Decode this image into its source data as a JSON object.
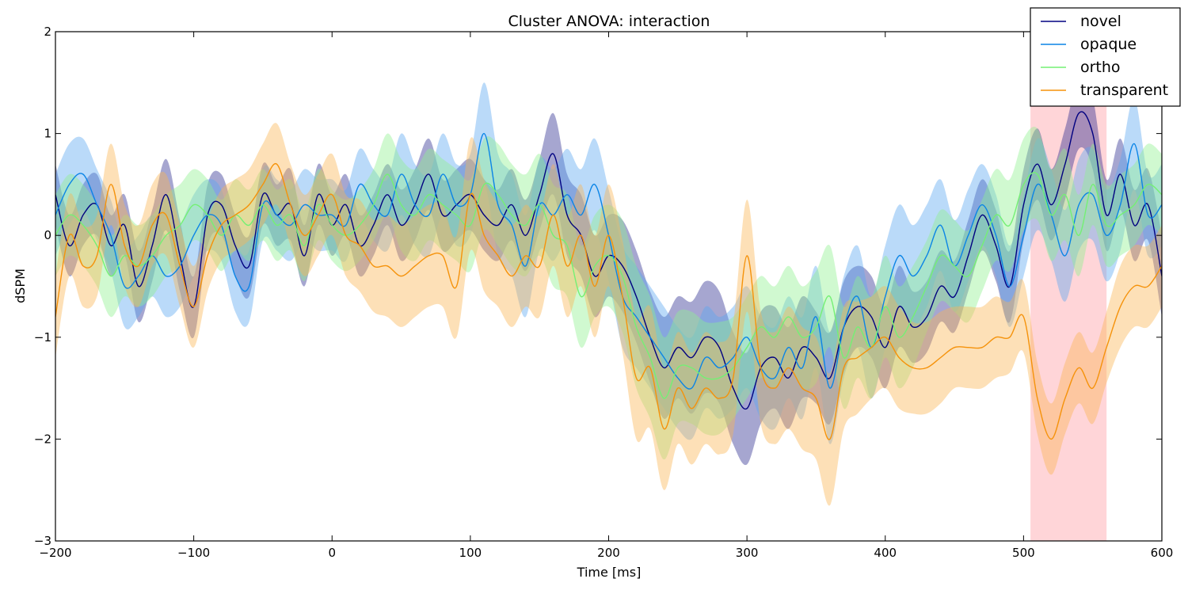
{
  "chart_data": {
    "type": "line",
    "title": "Cluster ANOVA: interaction",
    "xlabel": "Time [ms]",
    "ylabel": "dSPM",
    "xlim": [
      -200,
      600
    ],
    "ylim": [
      -3,
      2
    ],
    "xticks": [
      -200,
      -100,
      0,
      100,
      200,
      300,
      400,
      500,
      600
    ],
    "yticks": [
      -3,
      -2,
      -1,
      0,
      1,
      2
    ],
    "grid": false,
    "legend_position": "top-right",
    "highlight_span": [
      505,
      560
    ],
    "highlight_color": "#ffb3b8",
    "series": [
      {
        "name": "novel",
        "color": "#000080",
        "band_color": "#2a2a8f",
        "x": [
          -200,
          -190,
          -180,
          -170,
          -160,
          -150,
          -140,
          -130,
          -120,
          -110,
          -100,
          -90,
          -80,
          -70,
          -60,
          -50,
          -40,
          -30,
          -20,
          -10,
          0,
          10,
          20,
          30,
          40,
          50,
          60,
          70,
          80,
          90,
          100,
          110,
          120,
          130,
          140,
          150,
          160,
          170,
          180,
          190,
          200,
          210,
          220,
          230,
          240,
          250,
          260,
          270,
          280,
          290,
          300,
          310,
          320,
          330,
          340,
          350,
          360,
          370,
          380,
          390,
          400,
          410,
          420,
          430,
          440,
          450,
          460,
          470,
          480,
          490,
          500,
          510,
          520,
          530,
          540,
          550,
          560,
          570,
          580,
          590,
          600
        ],
        "y": [
          0.4,
          -0.1,
          0.2,
          0.3,
          -0.1,
          0.1,
          -0.5,
          -0.1,
          0.4,
          -0.2,
          -0.7,
          0.2,
          0.3,
          -0.1,
          -0.3,
          0.4,
          0.2,
          0.3,
          -0.2,
          0.4,
          0.1,
          0.3,
          -0.1,
          0.1,
          0.4,
          0.1,
          0.3,
          0.6,
          0.2,
          0.3,
          0.4,
          0.2,
          0.1,
          0.3,
          0.0,
          0.4,
          0.8,
          0.2,
          0.0,
          -0.4,
          -0.2,
          -0.3,
          -0.6,
          -1.0,
          -1.3,
          -1.1,
          -1.2,
          -1.0,
          -1.1,
          -1.5,
          -1.7,
          -1.3,
          -1.2,
          -1.4,
          -1.1,
          -1.2,
          -1.4,
          -0.9,
          -0.7,
          -0.8,
          -1.1,
          -0.7,
          -0.9,
          -0.8,
          -0.5,
          -0.6,
          -0.2,
          0.2,
          -0.1,
          -0.5,
          0.3,
          0.7,
          0.3,
          0.7,
          1.2,
          1.0,
          0.2,
          0.6,
          0.1,
          0.3,
          -0.4
        ],
        "err": [
          0.3,
          0.3,
          0.3,
          0.3,
          0.3,
          0.3,
          0.35,
          0.35,
          0.35,
          0.35,
          0.3,
          0.3,
          0.3,
          0.3,
          0.3,
          0.3,
          0.3,
          0.35,
          0.3,
          0.3,
          0.3,
          0.3,
          0.3,
          0.3,
          0.3,
          0.35,
          0.35,
          0.35,
          0.35,
          0.35,
          0.35,
          0.35,
          0.35,
          0.35,
          0.35,
          0.35,
          0.4,
          0.4,
          0.4,
          0.4,
          0.4,
          0.45,
          0.45,
          0.45,
          0.5,
          0.5,
          0.55,
          0.55,
          0.55,
          0.55,
          0.55,
          0.55,
          0.5,
          0.5,
          0.5,
          0.45,
          0.45,
          0.45,
          0.4,
          0.4,
          0.4,
          0.4,
          0.35,
          0.35,
          0.35,
          0.35,
          0.35,
          0.35,
          0.35,
          0.35,
          0.35,
          0.35,
          0.35,
          0.35,
          0.35,
          0.35,
          0.35,
          0.35,
          0.35,
          0.35,
          0.4
        ]
      },
      {
        "name": "opaque",
        "color": "#0a84e6",
        "band_color": "#5aa8f0",
        "x": [
          -200,
          -190,
          -180,
          -170,
          -160,
          -150,
          -140,
          -130,
          -120,
          -110,
          -100,
          -90,
          -80,
          -70,
          -60,
          -50,
          -40,
          -30,
          -20,
          -10,
          0,
          10,
          20,
          30,
          40,
          50,
          60,
          70,
          80,
          90,
          100,
          110,
          120,
          130,
          140,
          150,
          160,
          170,
          180,
          190,
          200,
          210,
          220,
          230,
          240,
          250,
          260,
          270,
          280,
          290,
          300,
          310,
          320,
          330,
          340,
          350,
          360,
          370,
          380,
          390,
          400,
          410,
          420,
          430,
          440,
          450,
          460,
          470,
          480,
          490,
          500,
          510,
          520,
          530,
          540,
          550,
          560,
          570,
          580,
          590,
          600
        ],
        "y": [
          0.2,
          0.5,
          0.6,
          0.3,
          0.0,
          -0.5,
          -0.4,
          -0.2,
          -0.4,
          -0.3,
          0.0,
          0.2,
          0.1,
          -0.4,
          -0.5,
          0.3,
          0.2,
          0.1,
          0.3,
          0.2,
          0.2,
          0.1,
          0.5,
          0.3,
          0.2,
          0.6,
          0.3,
          0.2,
          0.6,
          0.3,
          0.4,
          1.0,
          0.3,
          0.1,
          -0.3,
          0.3,
          0.2,
          0.4,
          0.2,
          0.5,
          0.0,
          -0.6,
          -0.8,
          -1.0,
          -1.2,
          -1.4,
          -1.5,
          -1.2,
          -1.3,
          -1.2,
          -1.0,
          -1.3,
          -1.4,
          -1.1,
          -1.3,
          -0.8,
          -1.5,
          -0.9,
          -0.6,
          -1.1,
          -0.6,
          -0.2,
          -0.4,
          -0.2,
          0.1,
          -0.3,
          0.0,
          0.3,
          0.0,
          -0.5,
          0.0,
          0.5,
          0.2,
          -0.2,
          0.3,
          0.4,
          0.0,
          0.3,
          0.9,
          0.2,
          0.3
        ],
        "err": [
          0.4,
          0.4,
          0.35,
          0.35,
          0.35,
          0.4,
          0.4,
          0.4,
          0.4,
          0.4,
          0.4,
          0.35,
          0.35,
          0.35,
          0.35,
          0.35,
          0.35,
          0.35,
          0.35,
          0.35,
          0.35,
          0.35,
          0.35,
          0.35,
          0.35,
          0.4,
          0.4,
          0.4,
          0.4,
          0.4,
          0.4,
          0.5,
          0.5,
          0.5,
          0.5,
          0.45,
          0.45,
          0.45,
          0.45,
          0.45,
          0.45,
          0.5,
          0.5,
          0.5,
          0.5,
          0.5,
          0.5,
          0.5,
          0.5,
          0.5,
          0.5,
          0.5,
          0.5,
          0.5,
          0.5,
          0.5,
          0.55,
          0.5,
          0.5,
          0.5,
          0.5,
          0.5,
          0.5,
          0.5,
          0.45,
          0.45,
          0.45,
          0.4,
          0.4,
          0.4,
          0.4,
          0.45,
          0.45,
          0.45,
          0.45,
          0.45,
          0.45,
          0.45,
          0.45,
          0.4,
          0.4
        ]
      },
      {
        "name": "ortho",
        "color": "#74f074",
        "band_color": "#90f090",
        "x": [
          -200,
          -190,
          -180,
          -170,
          -160,
          -150,
          -140,
          -130,
          -120,
          -110,
          -100,
          -90,
          -80,
          -70,
          -60,
          -50,
          -40,
          -30,
          -20,
          -10,
          0,
          10,
          20,
          30,
          40,
          50,
          60,
          70,
          80,
          90,
          100,
          110,
          120,
          130,
          140,
          150,
          160,
          170,
          180,
          190,
          200,
          210,
          220,
          230,
          240,
          250,
          260,
          270,
          280,
          290,
          300,
          310,
          320,
          330,
          340,
          350,
          360,
          370,
          380,
          390,
          400,
          410,
          420,
          430,
          440,
          450,
          460,
          470,
          480,
          490,
          500,
          510,
          520,
          530,
          540,
          550,
          560,
          570,
          580,
          590,
          600
        ],
        "y": [
          0.0,
          0.2,
          0.1,
          -0.1,
          -0.4,
          -0.2,
          -0.3,
          -0.2,
          0.0,
          0.1,
          0.3,
          0.2,
          0.0,
          0.2,
          0.1,
          0.3,
          0.1,
          0.2,
          -0.1,
          0.3,
          0.1,
          0.0,
          0.1,
          0.3,
          0.6,
          0.3,
          0.2,
          0.4,
          0.3,
          0.2,
          0.1,
          0.5,
          0.4,
          0.2,
          0.1,
          0.3,
          0.0,
          -0.1,
          -0.6,
          -0.3,
          -0.2,
          -0.4,
          -0.9,
          -1.2,
          -1.6,
          -1.3,
          -1.3,
          -1.4,
          -1.4,
          -1.3,
          -1.1,
          -0.9,
          -1.0,
          -0.8,
          -1.0,
          -0.9,
          -0.6,
          -1.2,
          -0.9,
          -1.1,
          -0.7,
          -1.0,
          -0.8,
          -0.5,
          -0.2,
          -0.3,
          -0.4,
          -0.1,
          0.2,
          0.1,
          0.5,
          0.6,
          0.2,
          0.4,
          0.0,
          0.5,
          0.1,
          0.2,
          0.3,
          0.5,
          0.4
        ],
        "err": [
          0.4,
          0.4,
          0.4,
          0.4,
          0.4,
          0.4,
          0.4,
          0.4,
          0.4,
          0.4,
          0.35,
          0.35,
          0.35,
          0.35,
          0.35,
          0.35,
          0.35,
          0.35,
          0.35,
          0.35,
          0.35,
          0.35,
          0.35,
          0.35,
          0.4,
          0.45,
          0.45,
          0.45,
          0.45,
          0.45,
          0.45,
          0.45,
          0.5,
          0.5,
          0.5,
          0.5,
          0.5,
          0.5,
          0.5,
          0.5,
          0.5,
          0.55,
          0.6,
          0.6,
          0.6,
          0.55,
          0.55,
          0.55,
          0.55,
          0.5,
          0.5,
          0.5,
          0.5,
          0.5,
          0.5,
          0.55,
          0.5,
          0.5,
          0.5,
          0.5,
          0.5,
          0.5,
          0.5,
          0.45,
          0.45,
          0.45,
          0.45,
          0.45,
          0.45,
          0.45,
          0.45,
          0.45,
          0.45,
          0.45,
          0.4,
          0.4,
          0.4,
          0.4,
          0.4,
          0.4,
          0.4
        ]
      },
      {
        "name": "transparent",
        "color": "#f5920a",
        "band_color": "#fbb454",
        "x": [
          -200,
          -190,
          -180,
          -170,
          -160,
          -150,
          -140,
          -130,
          -120,
          -110,
          -100,
          -90,
          -80,
          -70,
          -60,
          -50,
          -40,
          -30,
          -20,
          -10,
          0,
          10,
          20,
          30,
          40,
          50,
          60,
          70,
          80,
          90,
          100,
          110,
          120,
          130,
          140,
          150,
          160,
          170,
          180,
          190,
          200,
          210,
          220,
          230,
          240,
          250,
          260,
          270,
          280,
          290,
          300,
          310,
          320,
          330,
          340,
          350,
          360,
          370,
          380,
          390,
          400,
          410,
          420,
          430,
          440,
          450,
          460,
          470,
          480,
          490,
          500,
          510,
          520,
          530,
          540,
          550,
          560,
          570,
          580,
          590,
          600
        ],
        "y": [
          -0.8,
          0.0,
          -0.3,
          -0.2,
          0.5,
          -0.1,
          -0.3,
          0.1,
          0.2,
          -0.3,
          -0.7,
          -0.2,
          0.1,
          0.2,
          0.3,
          0.5,
          0.7,
          0.3,
          0.0,
          0.2,
          0.4,
          0.0,
          -0.1,
          -0.3,
          -0.3,
          -0.4,
          -0.3,
          -0.2,
          -0.2,
          -0.5,
          0.4,
          0.0,
          -0.2,
          -0.4,
          -0.2,
          -0.3,
          0.2,
          -0.3,
          0.0,
          -0.5,
          0.0,
          -0.6,
          -1.4,
          -1.3,
          -1.9,
          -1.5,
          -1.7,
          -1.5,
          -1.6,
          -1.4,
          -0.2,
          -1.3,
          -1.5,
          -1.3,
          -1.5,
          -1.6,
          -2.0,
          -1.3,
          -1.2,
          -1.1,
          -1.0,
          -1.2,
          -1.3,
          -1.3,
          -1.2,
          -1.1,
          -1.1,
          -1.1,
          -1.0,
          -1.0,
          -0.8,
          -1.6,
          -2.0,
          -1.6,
          -1.3,
          -1.5,
          -1.1,
          -0.7,
          -0.5,
          -0.5,
          -0.3
        ],
        "err": [
          0.4,
          0.4,
          0.4,
          0.4,
          0.4,
          0.4,
          0.4,
          0.4,
          0.4,
          0.4,
          0.4,
          0.35,
          0.35,
          0.35,
          0.35,
          0.4,
          0.4,
          0.4,
          0.4,
          0.4,
          0.4,
          0.4,
          0.45,
          0.45,
          0.5,
          0.5,
          0.5,
          0.5,
          0.5,
          0.5,
          0.55,
          0.55,
          0.5,
          0.5,
          0.5,
          0.5,
          0.5,
          0.5,
          0.5,
          0.5,
          0.5,
          0.55,
          0.6,
          0.6,
          0.6,
          0.55,
          0.55,
          0.55,
          0.55,
          0.55,
          0.55,
          0.55,
          0.55,
          0.6,
          0.6,
          0.6,
          0.65,
          0.6,
          0.55,
          0.5,
          0.5,
          0.5,
          0.45,
          0.45,
          0.45,
          0.4,
          0.4,
          0.4,
          0.4,
          0.35,
          0.35,
          0.35,
          0.35,
          0.35,
          0.35,
          0.35,
          0.35,
          0.4,
          0.4,
          0.4,
          0.4
        ]
      }
    ]
  }
}
